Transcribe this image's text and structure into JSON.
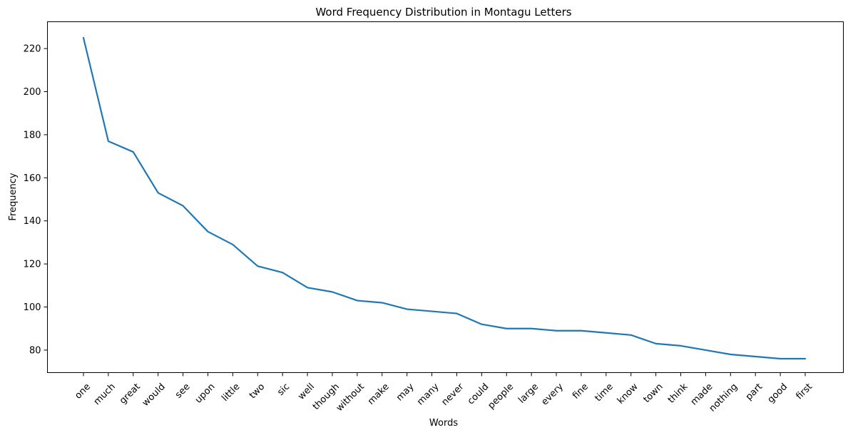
{
  "chart_data": {
    "type": "line",
    "title": "Word Frequency Distribution in Montagu Letters",
    "xlabel": "Words",
    "ylabel": "Frequency",
    "categories": [
      "one",
      "much",
      "great",
      "would",
      "see",
      "upon",
      "little",
      "two",
      "sic",
      "well",
      "though",
      "without",
      "make",
      "may",
      "many",
      "never",
      "could",
      "people",
      "large",
      "every",
      "fine",
      "time",
      "know",
      "town",
      "think",
      "made",
      "nothing",
      "part",
      "good",
      "first"
    ],
    "values": [
      225,
      177,
      172,
      153,
      147,
      135,
      129,
      119,
      116,
      109,
      107,
      103,
      102,
      99,
      98,
      97,
      92,
      90,
      90,
      89,
      89,
      88,
      87,
      83,
      82,
      80,
      78,
      77,
      76,
      76
    ],
    "ylim": [
      69.55,
      232.45
    ],
    "yticks": [
      80,
      100,
      120,
      140,
      160,
      180,
      200,
      220
    ],
    "grid": false,
    "line_color": "#1f77b4"
  }
}
